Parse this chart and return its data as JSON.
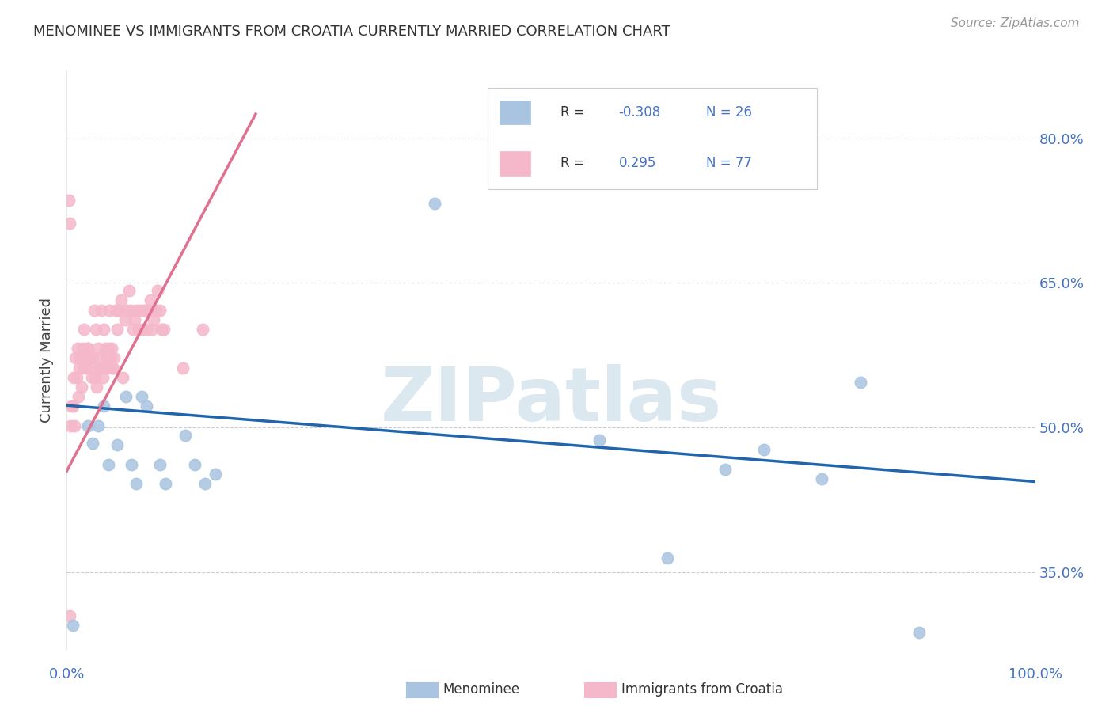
{
  "title": "MENOMINEE VS IMMIGRANTS FROM CROATIA CURRENTLY MARRIED CORRELATION CHART",
  "source": "Source: ZipAtlas.com",
  "ylabel": "Currently Married",
  "xlim": [
    0.0,
    1.0
  ],
  "ylim": [
    0.27,
    0.87
  ],
  "ytick_vals": [
    0.35,
    0.5,
    0.65,
    0.8
  ],
  "ytick_labels": [
    "35.0%",
    "50.0%",
    "65.0%",
    "80.0%"
  ],
  "menominee_color": "#a8c4e0",
  "croatia_color": "#f5b8cb",
  "menominee_line_color": "#2166ac",
  "croatia_line_color": "#e07090",
  "watermark": "ZIPatlas",
  "menominee_x": [
    0.006,
    0.022,
    0.027,
    0.032,
    0.038,
    0.043,
    0.052,
    0.061,
    0.067,
    0.072,
    0.077,
    0.082,
    0.096,
    0.102,
    0.122,
    0.132,
    0.143,
    0.153,
    0.38,
    0.55,
    0.62,
    0.68,
    0.72,
    0.78,
    0.82,
    0.88
  ],
  "menominee_y": [
    0.295,
    0.502,
    0.484,
    0.502,
    0.522,
    0.462,
    0.482,
    0.532,
    0.462,
    0.442,
    0.532,
    0.522,
    0.462,
    0.442,
    0.492,
    0.462,
    0.442,
    0.452,
    0.732,
    0.487,
    0.365,
    0.457,
    0.477,
    0.447,
    0.547,
    0.288
  ],
  "croatia_x": [
    0.004,
    0.006,
    0.008,
    0.01,
    0.012,
    0.014,
    0.016,
    0.018,
    0.02,
    0.022,
    0.024,
    0.026,
    0.028,
    0.03,
    0.032,
    0.034,
    0.036,
    0.038,
    0.04,
    0.042,
    0.044,
    0.046,
    0.048,
    0.05,
    0.052,
    0.054,
    0.056,
    0.058,
    0.06,
    0.062,
    0.064,
    0.066,
    0.068,
    0.07,
    0.072,
    0.074,
    0.076,
    0.078,
    0.08,
    0.082,
    0.084,
    0.086,
    0.088,
    0.09,
    0.092,
    0.094,
    0.096,
    0.098,
    0.1,
    0.005,
    0.007,
    0.009,
    0.011,
    0.013,
    0.015,
    0.017,
    0.019,
    0.021,
    0.023,
    0.025,
    0.027,
    0.029,
    0.031,
    0.033,
    0.035,
    0.037,
    0.039,
    0.041,
    0.043,
    0.045,
    0.047,
    0.049,
    0.002,
    0.003,
    0.12,
    0.14,
    0.003
  ],
  "croatia_y": [
    0.502,
    0.522,
    0.502,
    0.552,
    0.532,
    0.572,
    0.582,
    0.602,
    0.562,
    0.582,
    0.572,
    0.552,
    0.622,
    0.602,
    0.582,
    0.562,
    0.622,
    0.602,
    0.582,
    0.562,
    0.622,
    0.582,
    0.562,
    0.622,
    0.602,
    0.622,
    0.632,
    0.552,
    0.612,
    0.622,
    0.642,
    0.622,
    0.602,
    0.612,
    0.622,
    0.602,
    0.622,
    0.602,
    0.622,
    0.602,
    0.622,
    0.632,
    0.602,
    0.612,
    0.622,
    0.642,
    0.622,
    0.602,
    0.602,
    0.522,
    0.552,
    0.572,
    0.582,
    0.562,
    0.542,
    0.562,
    0.572,
    0.582,
    0.572,
    0.562,
    0.572,
    0.552,
    0.542,
    0.572,
    0.562,
    0.552,
    0.562,
    0.572,
    0.582,
    0.572,
    0.562,
    0.572,
    0.736,
    0.712,
    0.562,
    0.602,
    0.305
  ],
  "menominee_trend_x": [
    0.0,
    1.0
  ],
  "menominee_trend_y": [
    0.523,
    0.444
  ],
  "croatia_trend_x": [
    0.0,
    0.195
  ],
  "croatia_trend_y": [
    0.455,
    0.825
  ]
}
